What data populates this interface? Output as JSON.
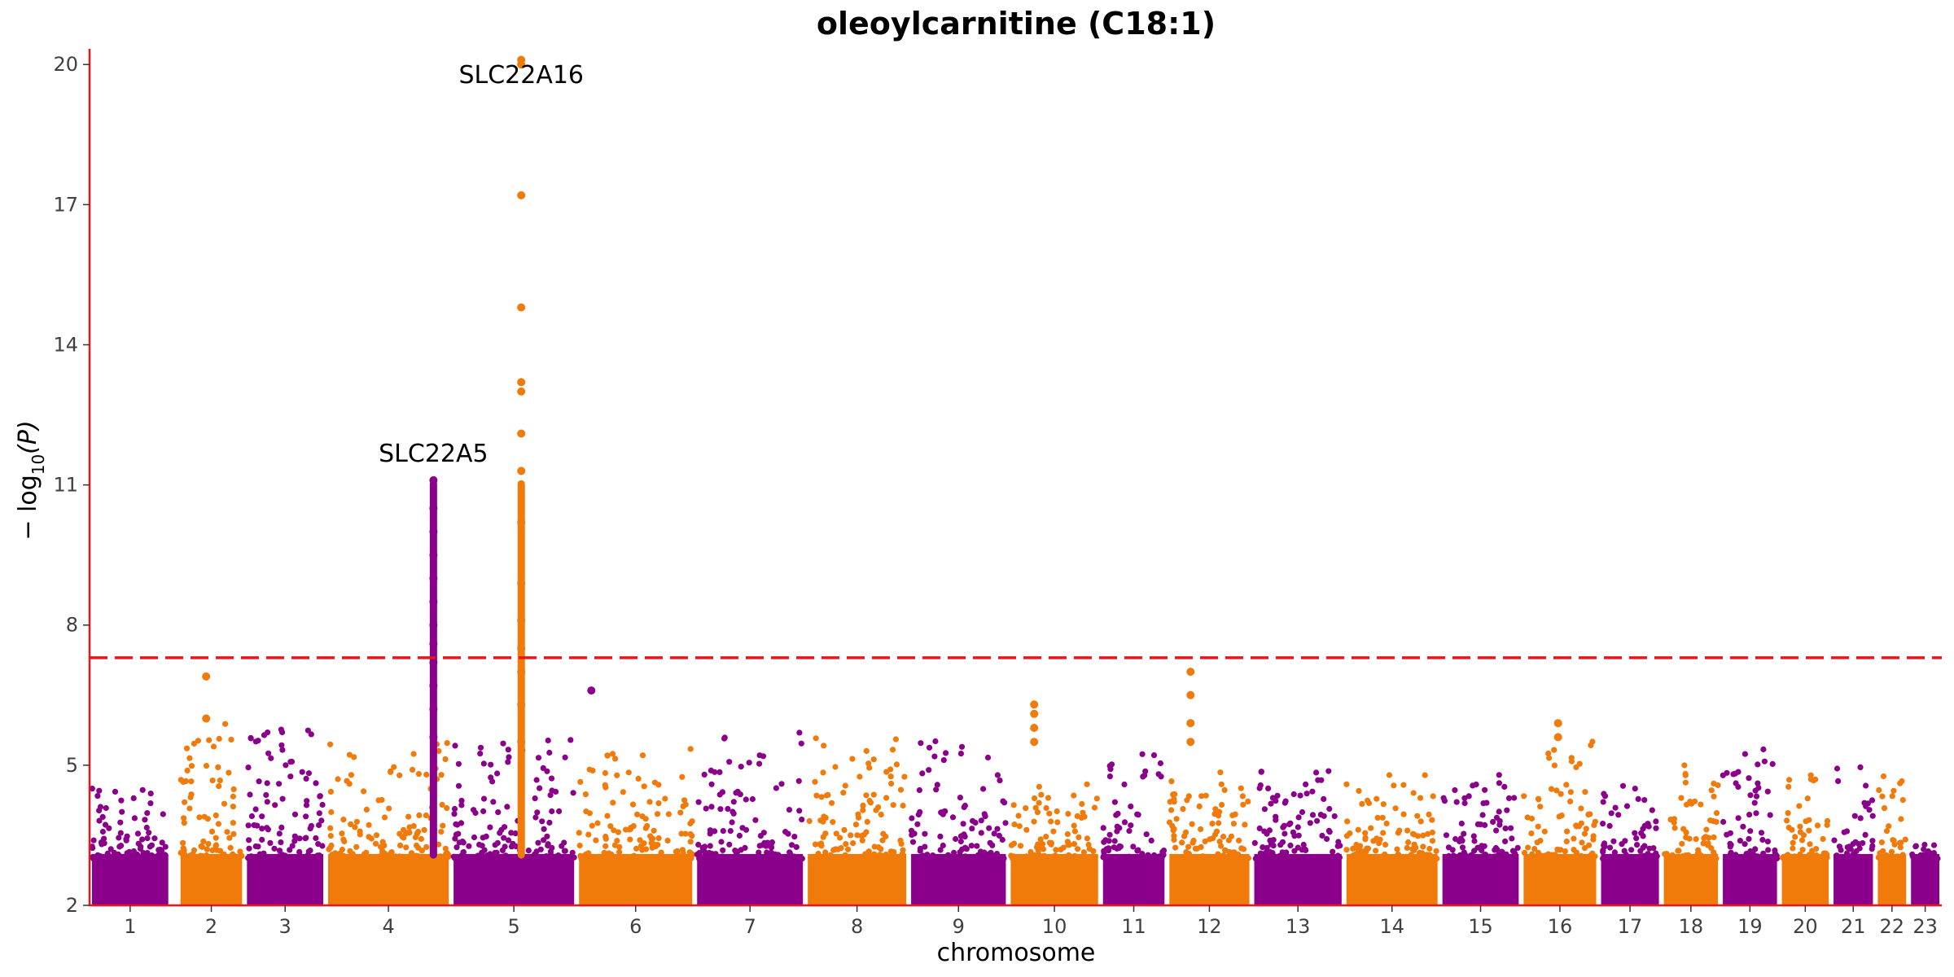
{
  "chart_data": {
    "type": "scatter",
    "subtype": "manhattan",
    "title": "oleoylcarnitine (C18:1)",
    "xlabel": "chromosome",
    "ylabel_main": "− log",
    "ylabel_sub": "10",
    "ylabel_tail": "(P)",
    "ylim": [
      2,
      20.3
    ],
    "yticks": [
      2,
      5,
      8,
      11,
      14,
      17,
      20
    ],
    "significance_threshold": 7.3,
    "colors": {
      "odd": "#8B008B",
      "even": "#F07A0A",
      "threshold": "#E8161A",
      "axis": "#E8161A"
    },
    "chromosomes": [
      {
        "label": "1",
        "start": 0.0,
        "end": 1.1,
        "max": 4.5
      },
      {
        "label": "2",
        "start": 1.2,
        "end": 2.1,
        "max": 6.0
      },
      {
        "label": "3",
        "start": 2.1,
        "end": 3.2,
        "max": 5.8
      },
      {
        "label": "4",
        "start": 3.2,
        "end": 4.9,
        "max": 5.6
      },
      {
        "label": "5",
        "start": 4.9,
        "end": 6.6,
        "max": 5.6
      },
      {
        "label": "6",
        "start": 6.6,
        "end": 8.2,
        "max": 5.4
      },
      {
        "label": "7",
        "start": 8.2,
        "end": 9.7,
        "max": 5.7
      },
      {
        "label": "8",
        "start": 9.7,
        "end": 11.1,
        "max": 5.6
      },
      {
        "label": "9",
        "start": 11.1,
        "end": 12.45,
        "max": 5.7
      },
      {
        "label": "10",
        "start": 12.45,
        "end": 13.7,
        "max": 4.6
      },
      {
        "label": "11",
        "start": 13.7,
        "end": 14.6,
        "max": 5.4
      },
      {
        "label": "12",
        "start": 14.6,
        "end": 15.75,
        "max": 5.0
      },
      {
        "label": "13",
        "start": 15.75,
        "end": 17.0,
        "max": 4.9
      },
      {
        "label": "14",
        "start": 17.0,
        "end": 18.3,
        "max": 4.8
      },
      {
        "label": "15",
        "start": 18.3,
        "end": 19.4,
        "max": 4.8
      },
      {
        "label": "16",
        "start": 19.4,
        "end": 20.45,
        "max": 5.6
      },
      {
        "label": "17",
        "start": 20.45,
        "end": 21.3,
        "max": 4.6
      },
      {
        "label": "18",
        "start": 21.3,
        "end": 22.1,
        "max": 5.0
      },
      {
        "label": "19",
        "start": 22.1,
        "end": 22.9,
        "max": 5.7
      },
      {
        "label": "20",
        "start": 22.9,
        "end": 23.6,
        "max": 4.8
      },
      {
        "label": "21",
        "start": 23.6,
        "end": 24.2,
        "max": 5.0
      },
      {
        "label": "22",
        "start": 24.2,
        "end": 24.65,
        "max": 4.8
      },
      {
        "label": "23",
        "start": 24.65,
        "end": 25.1,
        "max": 3.3
      }
    ],
    "highlight_points": [
      {
        "chr": "2",
        "pos": 1.58,
        "values": [
          6.0,
          6.9
        ]
      },
      {
        "chr": "5",
        "pos": 4.66,
        "values": [
          5.6,
          6.2,
          6.7,
          7.2,
          7.6,
          8.0,
          8.5,
          9.0,
          9.5,
          10.0,
          10.5,
          11.1
        ]
      },
      {
        "chr": "6",
        "pos": 5.85,
        "values": [
          5.5,
          6.3,
          7.0,
          7.5,
          8.1,
          8.9,
          10.2,
          11.3,
          12.1,
          13.0,
          13.2,
          14.8,
          17.2,
          20.0,
          20.1
        ]
      },
      {
        "chr": "7",
        "pos": 6.8,
        "values": [
          6.6
        ]
      },
      {
        "chr": "10",
        "pos": 12.8,
        "values": [
          5.5,
          5.8,
          6.1,
          6.3
        ]
      },
      {
        "chr": "12",
        "pos": 14.92,
        "values": [
          5.5,
          5.9,
          6.5,
          7.0
        ]
      },
      {
        "chr": "16",
        "pos": 19.9,
        "values": [
          5.6,
          5.9
        ]
      }
    ],
    "annotations": [
      {
        "text": "SLC22A16",
        "x": 5.85,
        "y": 19.6
      },
      {
        "text": "SLC22A5",
        "x": 4.66,
        "y": 11.5
      }
    ]
  }
}
